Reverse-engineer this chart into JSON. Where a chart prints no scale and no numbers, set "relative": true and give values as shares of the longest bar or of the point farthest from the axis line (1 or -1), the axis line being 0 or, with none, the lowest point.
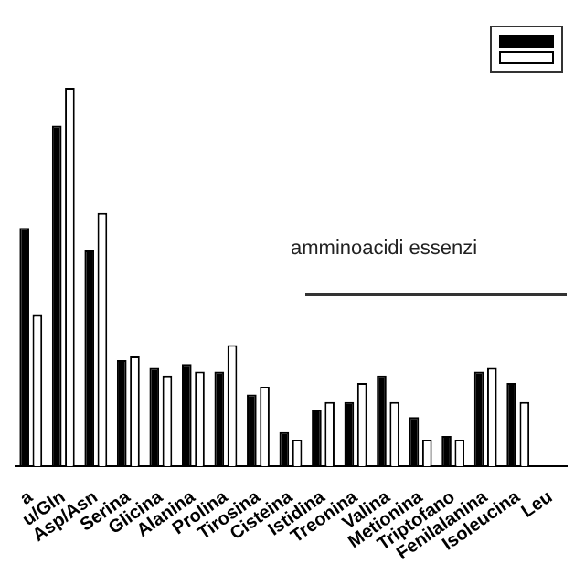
{
  "chart_data": {
    "type": "bar",
    "relative": true,
    "categories": [
      "a",
      "u/Gln",
      "Asp/Asn",
      "Serina",
      "Glicina",
      "Alanina",
      "Prolina",
      "Tirosina",
      "Cisteina",
      "Istidina",
      "Treonina",
      "Valina",
      "Metionina",
      "Triptofano",
      "Fenilalanina",
      "Isoleucina",
      "Leu"
    ],
    "series": [
      {
        "color": "#000000",
        "values": [
          0.63,
          0.9,
          0.57,
          0.28,
          0.26,
          0.27,
          0.25,
          0.19,
          0.09,
          0.15,
          0.17,
          0.24,
          0.13,
          0.08,
          0.25,
          0.22,
          null
        ]
      },
      {
        "color": "#ffffff",
        "values": [
          0.4,
          1,
          0.67,
          0.29,
          0.24,
          0.25,
          0.32,
          0.21,
          0.07,
          0.17,
          0.22,
          0.17,
          0.07,
          0.07,
          0.26,
          0.17,
          null
        ]
      }
    ],
    "annotations": [
      "amminoacidi essenzi"
    ],
    "grid": false
  }
}
